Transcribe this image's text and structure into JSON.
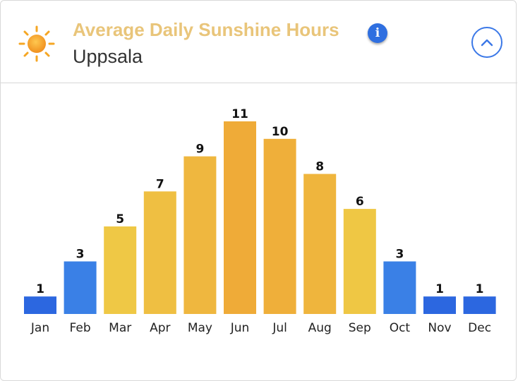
{
  "header": {
    "title": "Average Daily Sunshine Hours",
    "subtitle": "Uppsala",
    "info_icon": "info-icon",
    "collapse_icon": "chevron-up-icon",
    "sun_icon": "sun-icon"
  },
  "colors": {
    "low": "#3a79e6",
    "mid": "#efc23f",
    "high": "#efaa38",
    "title": "#e9c57a",
    "accent": "#2f6fe0"
  },
  "chart_data": {
    "type": "bar",
    "title": "Average Daily Sunshine Hours",
    "subtitle": "Uppsala",
    "categories": [
      "Jan",
      "Feb",
      "Mar",
      "Apr",
      "May",
      "Jun",
      "Jul",
      "Aug",
      "Sep",
      "Oct",
      "Nov",
      "Dec"
    ],
    "values": [
      1,
      3,
      5,
      7,
      9,
      11,
      10,
      8,
      6,
      3,
      1,
      1
    ],
    "data_labels": [
      "1",
      "3",
      "5",
      "7",
      "9",
      "11",
      "10",
      "8",
      "6",
      "3",
      "1",
      "1"
    ],
    "bar_colors": [
      "#2c67e0",
      "#3a80e6",
      "#efc845",
      "#efbf42",
      "#efb73f",
      "#efab38",
      "#efaf3a",
      "#efb53d",
      "#efc744",
      "#3a80e6",
      "#2c67e0",
      "#2c67e0"
    ],
    "ylim": [
      0,
      11
    ],
    "grid": false,
    "legend": "none"
  }
}
